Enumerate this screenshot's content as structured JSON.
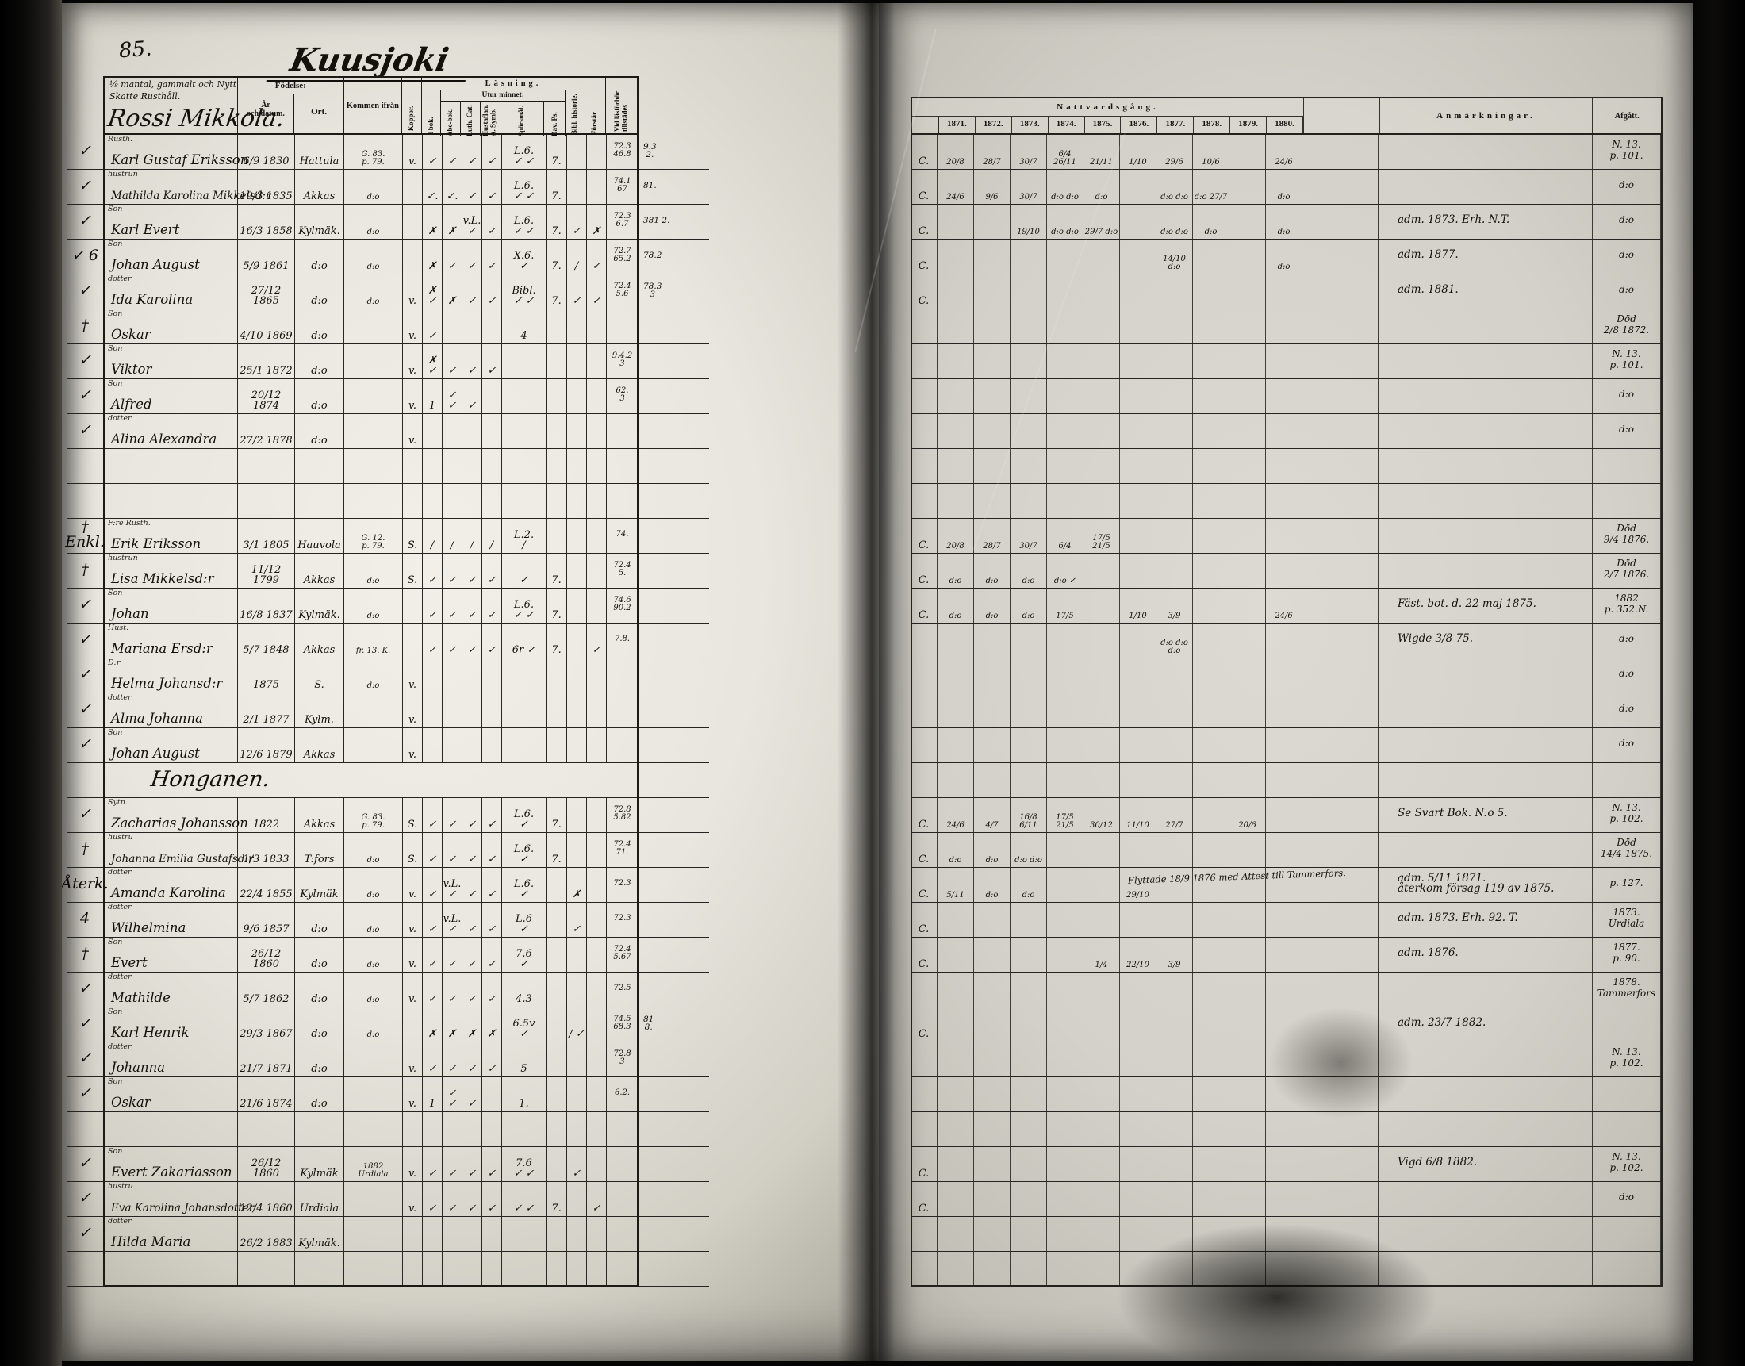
{
  "page_number": "85.",
  "title": "Kuusjoki",
  "estate": {
    "mantal_line1": "⅛ mantal, gammalt och Nytt",
    "mantal_line2": "Skatte Rusthåll.",
    "farm_title": "Rossi Mikkola."
  },
  "left_header": {
    "fodelse": "Födelse:",
    "ar_och_datum": "År\noch datum.",
    "ort": "Ort.",
    "kommen_ifran": "Kommen ifrån",
    "koppor": "Koppor.",
    "lasning": "Läsning.",
    "i_bok": "I bok.",
    "utur_minnet": "Utur minnet:",
    "abc_bok": "Abc-bok.",
    "luth_cat": "Luth. Cat.",
    "hustaflan": "Hustaflan.\nA. Symb.",
    "sporsmal": "Spörsmål.",
    "dav_ps": "Dav. Ps.",
    "bibl_historie": "Bibl. historie.",
    "forstar": "Förstår",
    "tillstades": "Vid läsförhör\ntillstädes"
  },
  "right_header": {
    "nattvardsgang": "Nattvardsgång.",
    "years": [
      "1871.",
      "1872.",
      "1873.",
      "1874.",
      "1875.",
      "1876.",
      "1877.",
      "1878.",
      "1879.",
      "1880."
    ],
    "anmarkningar": "Anmärkningar.",
    "afgatt": "Afgått."
  },
  "rows": [
    {
      "type": "person",
      "m": "✓",
      "rel": "Rusth.",
      "name": "Karl Gustaf Eriksson",
      "date": "6/9 1830",
      "ort": "Hattula",
      "kom": "G. 83.|p. 79.",
      "marks": [
        "v.",
        "✓",
        "✓",
        "✓",
        "✓",
        "L.6.|✓ ✓",
        "7.",
        "",
        "",
        "72.3|46.8"
      ],
      "edge": "9.3|2.",
      "c": "C.",
      "comm": [
        "20/8",
        "28/7",
        "30/7",
        "6/4 26/11",
        "21/11",
        "1/10",
        "29/6",
        "10/6",
        "",
        "24/6"
      ],
      "anm": [],
      "afg": [
        "N. 13.",
        "p. 101."
      ]
    },
    {
      "type": "person",
      "m": "✓",
      "rel": "hustrun",
      "name": "Mathilda Karolina Mikkelsd:r",
      "date": "19/3 1835",
      "ort": "Akkas",
      "kom": "d:o",
      "marks": [
        "",
        "✓.",
        "✓.",
        "✓",
        "✓",
        "L.6.|✓ ✓",
        "7.",
        "",
        "",
        "74.1|67"
      ],
      "edge": "81.",
      "c": "C.",
      "comm": [
        "24/6",
        "9/6",
        "30/7",
        "d:o d:o",
        "d:o",
        "",
        "d:o d:o",
        "d:o 27/7",
        "",
        "d:o"
      ],
      "anm": [],
      "afg": [
        "d:o"
      ]
    },
    {
      "type": "person",
      "m": "✓",
      "rel": "Son",
      "name": "Karl Evert",
      "date": "16/3 1858",
      "ort": "Kylmäk.",
      "kom": "d:o",
      "marks": [
        "",
        "✗",
        "✗",
        "v.L.|✓",
        "✓",
        "L.6.|✓ ✓",
        "7.",
        "✓",
        "✗",
        "72.3|6.7"
      ],
      "edge": "381 2.",
      "c": "C.",
      "comm": [
        "",
        "",
        "19/10",
        "d:o d:o",
        "29/7 d:o",
        "",
        "d:o d:o",
        "d:o",
        "",
        "d:o"
      ],
      "anm": [
        "adm. 1873. Erh. N.T."
      ],
      "afg": [
        "d:o"
      ]
    },
    {
      "type": "person",
      "m": "✓ 6",
      "rel": "Son",
      "name": "Johan August",
      "date": "5/9 1861",
      "ort": "d:o",
      "kom": "d:o",
      "marks": [
        "",
        "✗",
        "✓",
        "✓",
        "✓",
        "X.6.|✓",
        "7.",
        "/",
        "✓",
        "72.7|65.2"
      ],
      "edge": "78.2",
      "c": "C.",
      "comm": [
        "",
        "",
        "",
        "",
        "",
        "",
        "14/10 d:o",
        "",
        "",
        "d:o"
      ],
      "anm": [
        "adm. 1877."
      ],
      "afg": [
        "d:o"
      ]
    },
    {
      "type": "person",
      "m": "✓",
      "rel": "dotter",
      "name": "Ida Karolina",
      "date": "27/12 1865",
      "ort": "d:o",
      "kom": "d:o",
      "marks": [
        "v.",
        "✗ ✓",
        "✗",
        "✓",
        "✓",
        "Bibl.|✓ ✓",
        "7.",
        "✓",
        "✓",
        "72.4|5.6"
      ],
      "edge": "78.3|3",
      "c": "C.",
      "comm": [
        "",
        "",
        "",
        "",
        "",
        "",
        "",
        "",
        "",
        ""
      ],
      "anm": [
        "adm. 1881."
      ],
      "afg": [
        "d:o"
      ]
    },
    {
      "type": "person",
      "m": "†",
      "rel": "Son",
      "name": "Oskar",
      "date": "4/10 1869",
      "ort": "d:o",
      "kom": "",
      "marks": [
        "v.",
        "✓",
        "",
        "",
        "",
        "4",
        "",
        "",
        "",
        ""
      ],
      "edge": "",
      "c": "",
      "comm": [
        "",
        "",
        "",
        "",
        "",
        "",
        "",
        "",
        "",
        ""
      ],
      "anm": [],
      "afg": [
        "Död",
        "2/8 1872."
      ]
    },
    {
      "type": "person",
      "m": "✓",
      "rel": "Son",
      "name": "Viktor",
      "date": "25/1 1872",
      "ort": "d:o",
      "kom": "",
      "marks": [
        "v.",
        "✗ ✓",
        "✓",
        "✓",
        "✓",
        "",
        "",
        "",
        "",
        "9.4.2|3"
      ],
      "edge": "",
      "c": "",
      "comm": [
        "",
        "",
        "",
        "",
        "",
        "",
        "",
        "",
        "",
        ""
      ],
      "anm": [],
      "afg": [
        "N. 13.",
        "p. 101."
      ]
    },
    {
      "type": "person",
      "m": "✓",
      "rel": "Son",
      "name": "Alfred",
      "date": "20/12 1874",
      "ort": "d:o",
      "kom": "",
      "marks": [
        "v.",
        "1",
        "✓ ✓",
        "✓",
        "",
        "",
        "",
        "",
        "",
        "62.|3"
      ],
      "edge": "",
      "c": "",
      "comm": [
        "",
        "",
        "",
        "",
        "",
        "",
        "",
        "",
        "",
        ""
      ],
      "anm": [],
      "afg": [
        "d:o"
      ]
    },
    {
      "type": "person",
      "m": "✓",
      "rel": "dotter",
      "name": "Alina Alexandra",
      "date": "27/2 1878",
      "ort": "d:o",
      "kom": "",
      "marks": [
        "v.",
        "",
        "",
        "",
        "",
        "",
        "",
        "",
        "",
        ""
      ],
      "edge": "",
      "c": "",
      "comm": [
        "",
        "",
        "",
        "",
        "",
        "",
        "",
        "",
        "",
        ""
      ],
      "anm": [],
      "afg": [
        "d:o"
      ]
    },
    {
      "type": "blank"
    },
    {
      "type": "blank"
    },
    {
      "type": "person",
      "m": "† Enkl.",
      "rel": "F:re Rusth.",
      "name": "Erik Eriksson",
      "date": "3/1 1805",
      "ort": "Hauvola",
      "kom": "G. 12.|p. 79.",
      "marks": [
        "S.",
        "/",
        "/",
        "/",
        "/",
        "L.2.|/",
        "",
        "",
        "",
        "74."
      ],
      "edge": "",
      "c": "C.",
      "comm": [
        "20/8",
        "28/7",
        "30/7",
        "6/4",
        "17/5 21/5",
        "",
        "",
        "",
        "",
        ""
      ],
      "anm": [],
      "afg": [
        "Död",
        "9/4 1876."
      ]
    },
    {
      "type": "person",
      "m": "†",
      "rel": "hustrun",
      "name": "Lisa Mikkelsd:r",
      "date": "11/12 1799",
      "ort": "Akkas",
      "kom": "d:o",
      "marks": [
        "S.",
        "✓",
        "✓",
        "✓",
        "✓",
        "✓",
        "7.",
        "",
        "",
        "72.4|5."
      ],
      "edge": "",
      "c": "C.",
      "comm": [
        "d:o",
        "d:o",
        "d:o",
        "d:o ✓",
        "",
        "",
        "",
        "",
        "",
        ""
      ],
      "anm": [],
      "afg": [
        "Död",
        "2/7 1876."
      ]
    },
    {
      "type": "person",
      "m": "✓",
      "rel": "Son",
      "name": "Johan",
      "date": "16/8 1837",
      "ort": "Kylmäk.",
      "kom": "d:o",
      "marks": [
        "",
        "✓",
        "✓",
        "✓",
        "✓",
        "L.6.|✓ ✓",
        "7.",
        "",
        "",
        "74.6|90.2"
      ],
      "edge": "",
      "c": "C.",
      "comm": [
        "d:o",
        "d:o",
        "d:o",
        "17/5",
        "",
        "1/10",
        "3/9",
        "",
        "",
        "24/6"
      ],
      "anm": [
        "Fäst. bot. d. 22 maj 1875."
      ],
      "afg": [
        "1882",
        "p. 352.N."
      ]
    },
    {
      "type": "person",
      "m": "✓",
      "rel": "Hust.",
      "name": "Mariana Ersd:r",
      "date": "5/7 1848",
      "ort": "Akkas",
      "kom": "fr. 13. K.",
      "marks": [
        "",
        "✓",
        "✓",
        "✓",
        "✓",
        "6r ✓",
        "7.",
        "",
        "✓",
        "7.8."
      ],
      "edge": "",
      "c": "",
      "comm": [
        "",
        "",
        "",
        "",
        "",
        "",
        "d:o d:o d:o",
        "",
        "",
        ""
      ],
      "anm": [
        "Wigde 3/8 75."
      ],
      "afg": [
        "d:o"
      ]
    },
    {
      "type": "person",
      "m": "✓",
      "rel": "D:r",
      "name": "Helma Johansd:r",
      "date": "1875",
      "ort": "S.",
      "kom": "d:o",
      "marks": [
        "v.",
        "",
        "",
        "",
        "",
        "",
        "",
        "",
        "",
        ""
      ],
      "edge": "",
      "c": "",
      "comm": [
        "",
        "",
        "",
        "",
        "",
        "",
        "",
        "",
        "",
        ""
      ],
      "anm": [],
      "afg": [
        "d:o"
      ]
    },
    {
      "type": "person",
      "m": "✓",
      "rel": "dotter",
      "name": "Alma Johanna",
      "date": "2/1 1877",
      "ort": "Kylm.",
      "kom": "",
      "marks": [
        "v.",
        "",
        "",
        "",
        "",
        "",
        "",
        "",
        "",
        ""
      ],
      "edge": "",
      "c": "",
      "comm": [
        "",
        "",
        "",
        "",
        "",
        "",
        "",
        "",
        "",
        ""
      ],
      "anm": [],
      "afg": [
        "d:o"
      ]
    },
    {
      "type": "person",
      "m": "✓",
      "rel": "Son",
      "name": "Johan August",
      "date": "12/6 1879",
      "ort": "Akkas",
      "kom": "",
      "marks": [
        "v.",
        "",
        "",
        "",
        "",
        "",
        "",
        "",
        "",
        ""
      ],
      "edge": "",
      "c": "",
      "comm": [
        "",
        "",
        "",
        "",
        "",
        "",
        "",
        "",
        "",
        ""
      ],
      "anm": [],
      "afg": [
        "d:o"
      ]
    },
    {
      "type": "section",
      "heading": "Honganen."
    },
    {
      "type": "person",
      "m": "✓",
      "rel": "Sytn.",
      "name": "Zacharias Johansson",
      "date": "1822",
      "ort": "Akkas",
      "kom": "G. 83.|p. 79.",
      "marks": [
        "S.",
        "✓",
        "✓",
        "✓",
        "✓",
        "L.6.|✓",
        "7.",
        "",
        "",
        "72.8|5.82"
      ],
      "edge": "",
      "c": "C.",
      "comm": [
        "24/6",
        "4/7",
        "16/8 6/11",
        "17/5 21/5",
        "30/12",
        "11/10",
        "27/7",
        "",
        "20/6",
        ""
      ],
      "anm": [
        "Se Svart Bok. N:o 5."
      ],
      "afg": [
        "N. 13.",
        "p. 102."
      ]
    },
    {
      "type": "person",
      "m": "†",
      "rel": "hustru",
      "name": "Johanna Emilia Gustafsd:r",
      "date": "1/3 1833",
      "ort": "T:fors",
      "kom": "d:o",
      "marks": [
        "S.",
        "✓",
        "✓",
        "✓",
        "✓",
        "L.6.|✓",
        "7.",
        "",
        "",
        "72.4|71."
      ],
      "edge": "",
      "c": "C.",
      "comm": [
        "d:o",
        "d:o",
        "d:o d:o",
        "",
        "",
        "",
        "",
        "",
        "",
        ""
      ],
      "anm": [],
      "afg": [
        "Död",
        "14/4 1875."
      ]
    },
    {
      "type": "person",
      "m": "Återk.",
      "rel": "dotter",
      "name": "Amanda Karolina",
      "date": "22/4 1855",
      "ort": "Kylmäk",
      "kom": "d:o",
      "marks": [
        "v.",
        "✓",
        "v.L.|✓",
        "✓",
        "✓",
        "L.6.|✓",
        "",
        "✗",
        "",
        "72.3"
      ],
      "edge": "",
      "c": "C.",
      "comm": [
        "5/11",
        "d:o",
        "d:o",
        "",
        "",
        "29/10",
        "",
        "",
        "",
        ""
      ],
      "note": "Flyttade 18/9 1876 med Attest till Tammerfors.",
      "anm": [
        "adm. 5/11 1871.",
        "återkom försag 119 av 1875."
      ],
      "afg": [
        "p. 127."
      ]
    },
    {
      "type": "person",
      "m": "4",
      "rel": "dotter",
      "name": "Wilhelmina",
      "date": "9/6 1857",
      "ort": "d:o",
      "kom": "d:o",
      "marks": [
        "v.",
        "✓",
        "v.L.|✓",
        "✓",
        "✓",
        "L.6|✓",
        "",
        "✓",
        "",
        "72.3"
      ],
      "edge": "",
      "c": "C.",
      "comm": [
        "",
        "",
        "",
        "",
        "",
        "",
        "",
        "",
        "",
        ""
      ],
      "anm": [
        "adm. 1873.  Erh. 92. T."
      ],
      "afg": [
        "1873.",
        "Urdiala"
      ]
    },
    {
      "type": "person",
      "m": "†",
      "rel": "Son",
      "name": "Evert",
      "date": "26/12 1860",
      "ort": "d:o",
      "kom": "d:o",
      "marks": [
        "v.",
        "✓",
        "✓",
        "✓",
        "✓",
        "7.6|✓",
        "",
        "",
        "",
        "72.4|5.67"
      ],
      "edge": "",
      "c": "C.",
      "comm": [
        "",
        "",
        "",
        "",
        "1/4",
        "22/10",
        "3/9",
        "",
        "",
        ""
      ],
      "anm": [
        "adm. 1876."
      ],
      "afg": [
        "1877.",
        "p. 90."
      ]
    },
    {
      "type": "person",
      "m": "✓",
      "rel": "dotter",
      "name": "Mathilde",
      "date": "5/7 1862",
      "ort": "d:o",
      "kom": "d:o",
      "marks": [
        "v.",
        "✓",
        "✓",
        "✓",
        "✓",
        "4.3",
        "",
        "",
        "",
        "72.5"
      ],
      "edge": "",
      "c": "",
      "comm": [
        "",
        "",
        "",
        "",
        "",
        "",
        "",
        "",
        "",
        ""
      ],
      "anm": [],
      "afg": [
        "1878.",
        "Tammerfors"
      ]
    },
    {
      "type": "person",
      "m": "✓",
      "rel": "Son",
      "name": "Karl Henrik",
      "date": "29/3 1867",
      "ort": "d:o",
      "kom": "d:o",
      "marks": [
        "",
        "✗",
        "✗",
        "✗",
        "✗",
        "6.5v|✓",
        "",
        "/ ✓",
        "",
        "74.5|68.3"
      ],
      "edge": "81|8.",
      "c": "C.",
      "comm": [
        "",
        "",
        "",
        "",
        "",
        "",
        "",
        "",
        "",
        ""
      ],
      "anm": [
        "adm. 23/7 1882."
      ],
      "afg": []
    },
    {
      "type": "person",
      "m": "✓",
      "rel": "dotter",
      "name": "Johanna",
      "date": "21/7 1871",
      "ort": "d:o",
      "kom": "",
      "marks": [
        "v.",
        "✓",
        "✓",
        "✓",
        "✓",
        "5",
        "",
        "",
        "",
        "72.8|3"
      ],
      "edge": "",
      "c": "",
      "comm": [
        "",
        "",
        "",
        "",
        "",
        "",
        "",
        "",
        "",
        ""
      ],
      "anm": [],
      "afg": [
        "N. 13.",
        "p. 102."
      ]
    },
    {
      "type": "person",
      "m": "✓",
      "rel": "Son",
      "name": "Oskar",
      "date": "21/6 1874",
      "ort": "d:o",
      "kom": "",
      "marks": [
        "v.",
        "1",
        "✓ ✓",
        "✓",
        "",
        "1.",
        "",
        "",
        "",
        "6.2."
      ],
      "edge": "",
      "c": "",
      "comm": [
        "",
        "",
        "",
        "",
        "",
        "",
        "",
        "",
        "",
        ""
      ],
      "anm": [],
      "afg": []
    },
    {
      "type": "blank"
    },
    {
      "type": "person",
      "m": "✓",
      "rel": "Son",
      "name": "Evert Zakariasson",
      "date": "26/12 1860",
      "ort": "Kylmäk",
      "kom": "1882|Urdiala",
      "marks": [
        "v.",
        "✓",
        "✓",
        "✓",
        "✓",
        "7.6|✓ ✓",
        "",
        "✓",
        "",
        ""
      ],
      "edge": "",
      "c": "C.",
      "comm": [
        "",
        "",
        "",
        "",
        "",
        "",
        "",
        "",
        "",
        ""
      ],
      "anm": [
        "Vigd 6/8 1882."
      ],
      "afg": [
        "N. 13.",
        "p. 102."
      ]
    },
    {
      "type": "person",
      "m": "✓",
      "rel": "hustru",
      "name": "Eva Karolina Johansdotter",
      "date": "12/4 1860",
      "ort": "Urdiala",
      "kom": "",
      "marks": [
        "v.",
        "✓",
        "✓",
        "✓",
        "✓",
        "✓ ✓",
        "7.",
        "",
        "✓",
        ""
      ],
      "edge": "",
      "c": "C.",
      "comm": [
        "",
        "",
        "",
        "",
        "",
        "",
        "",
        "",
        "",
        ""
      ],
      "anm": [],
      "afg": [
        "d:o"
      ]
    },
    {
      "type": "person",
      "m": "✓",
      "rel": "dotter",
      "name": "Hilda Maria",
      "date": "26/2 1883",
      "ort": "Kylmäk.",
      "kom": "",
      "marks": [
        "",
        "",
        "",
        "",
        "",
        "",
        "",
        "",
        "",
        ""
      ],
      "edge": "",
      "c": "",
      "comm": [
        "",
        "",
        "",
        "",
        "",
        "",
        "",
        "",
        "",
        ""
      ],
      "anm": [],
      "afg": []
    },
    {
      "type": "blank"
    }
  ]
}
